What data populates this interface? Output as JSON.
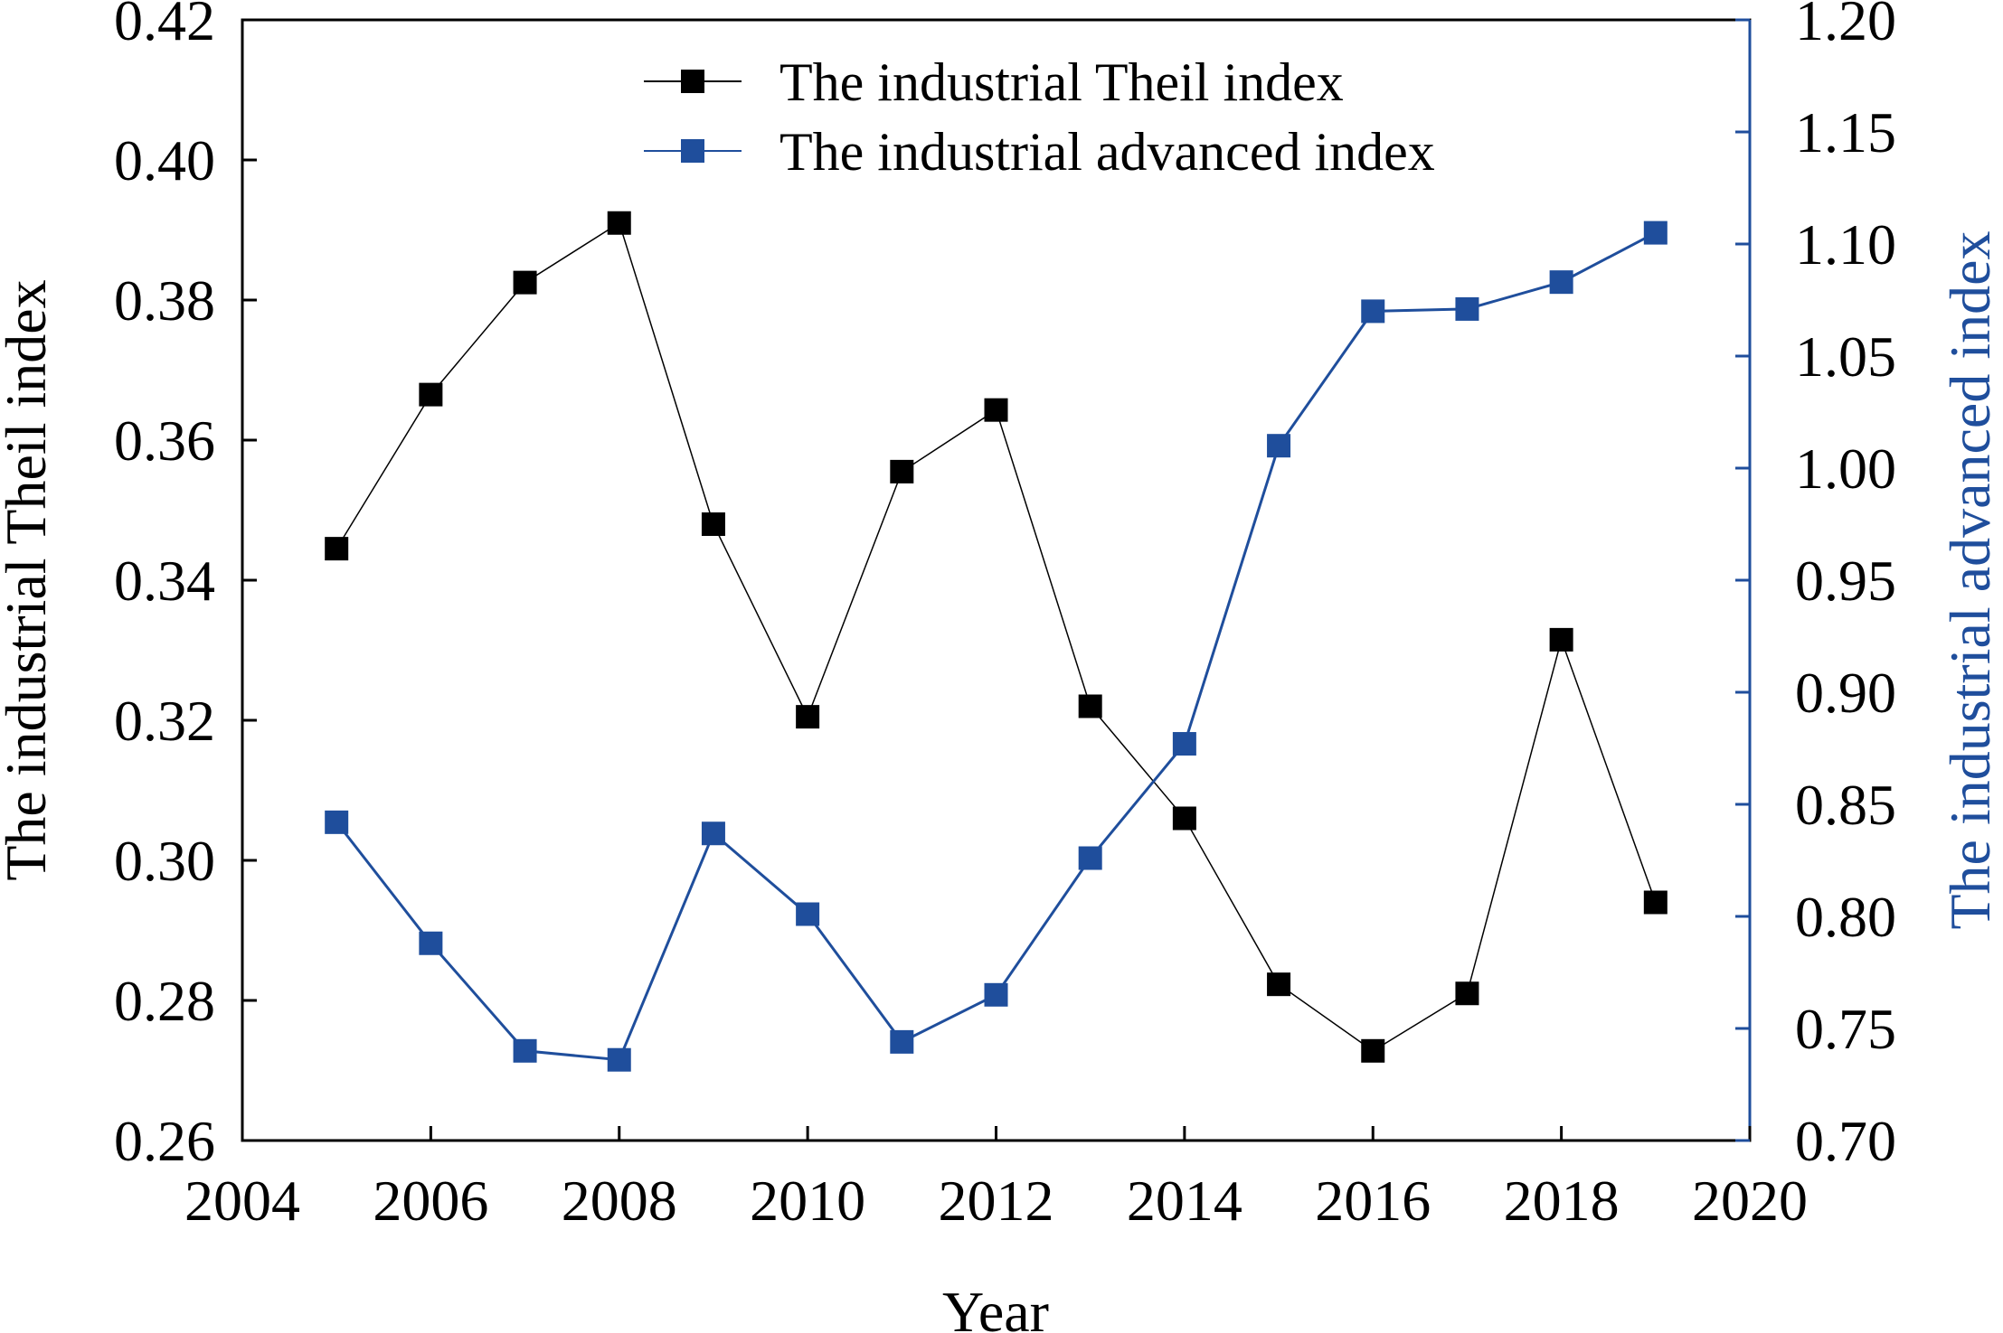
{
  "chart_data": {
    "type": "line",
    "x": [
      2005,
      2006,
      2007,
      2008,
      2009,
      2010,
      2011,
      2012,
      2013,
      2014,
      2015,
      2016,
      2017,
      2018,
      2019
    ],
    "xlabel": "Year",
    "xlim": [
      2004,
      2020
    ],
    "xticks": [
      "2004",
      "2006",
      "2008",
      "2010",
      "2012",
      "2014",
      "2016",
      "2018",
      "2020"
    ],
    "y_left": {
      "label": "The industrial Theil index",
      "lim": [
        0.26,
        0.42
      ],
      "ticks": [
        "0.26",
        "0.28",
        "0.30",
        "0.32",
        "0.34",
        "0.36",
        "0.38",
        "0.40",
        "0.42"
      ]
    },
    "y_right": {
      "label": "The industrial advanced index",
      "lim": [
        0.7,
        1.2
      ],
      "ticks": [
        "0.70",
        "0.75",
        "0.80",
        "0.85",
        "0.90",
        "0.95",
        "1.00",
        "1.05",
        "1.10",
        "1.15",
        "1.20"
      ]
    },
    "series": [
      {
        "name": "The industrial Theil index",
        "axis": "left",
        "color": "#000000",
        "marker": "square",
        "values": [
          0.3445,
          0.3665,
          0.3825,
          0.391,
          0.348,
          0.3205,
          0.3555,
          0.3643,
          0.322,
          0.306,
          0.2823,
          0.2728,
          0.281,
          0.3315,
          0.294
        ]
      },
      {
        "name": "The industrial advanced index",
        "axis": "right",
        "color": "#1f4e9c",
        "marker": "square",
        "values": [
          0.842,
          0.788,
          0.74,
          0.736,
          0.837,
          0.801,
          0.744,
          0.765,
          0.826,
          0.877,
          1.01,
          1.07,
          1.071,
          1.083,
          1.105
        ]
      }
    ],
    "legend": "top-center",
    "grid": false
  }
}
